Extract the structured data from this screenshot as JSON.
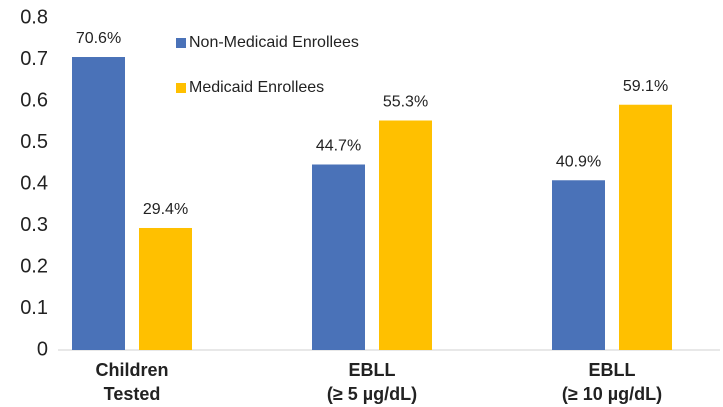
{
  "chart_data": {
    "type": "bar",
    "categories": [
      [
        "Children",
        "Tested"
      ],
      [
        "EBLL",
        "(≥ 5 µg/dL)"
      ],
      [
        "EBLL",
        "(≥ 10 µg/dL)"
      ]
    ],
    "series": [
      {
        "name": "Non-Medicaid Enrollees",
        "color": "#4a72b8",
        "values": [
          0.706,
          0.447,
          0.409
        ],
        "value_labels": [
          "70.6%",
          "44.7%",
          "40.9%"
        ]
      },
      {
        "name": "Medicaid Enrollees",
        "color": "#ffc000",
        "values": [
          0.294,
          0.553,
          0.591
        ],
        "value_labels": [
          "29.4%",
          "55.3%",
          "59.1%"
        ]
      }
    ],
    "ylim": [
      0,
      0.8
    ],
    "yticks": [
      0,
      0.1,
      0.2,
      0.3,
      0.4,
      0.5,
      0.6,
      0.7,
      0.8
    ],
    "grid": false
  }
}
